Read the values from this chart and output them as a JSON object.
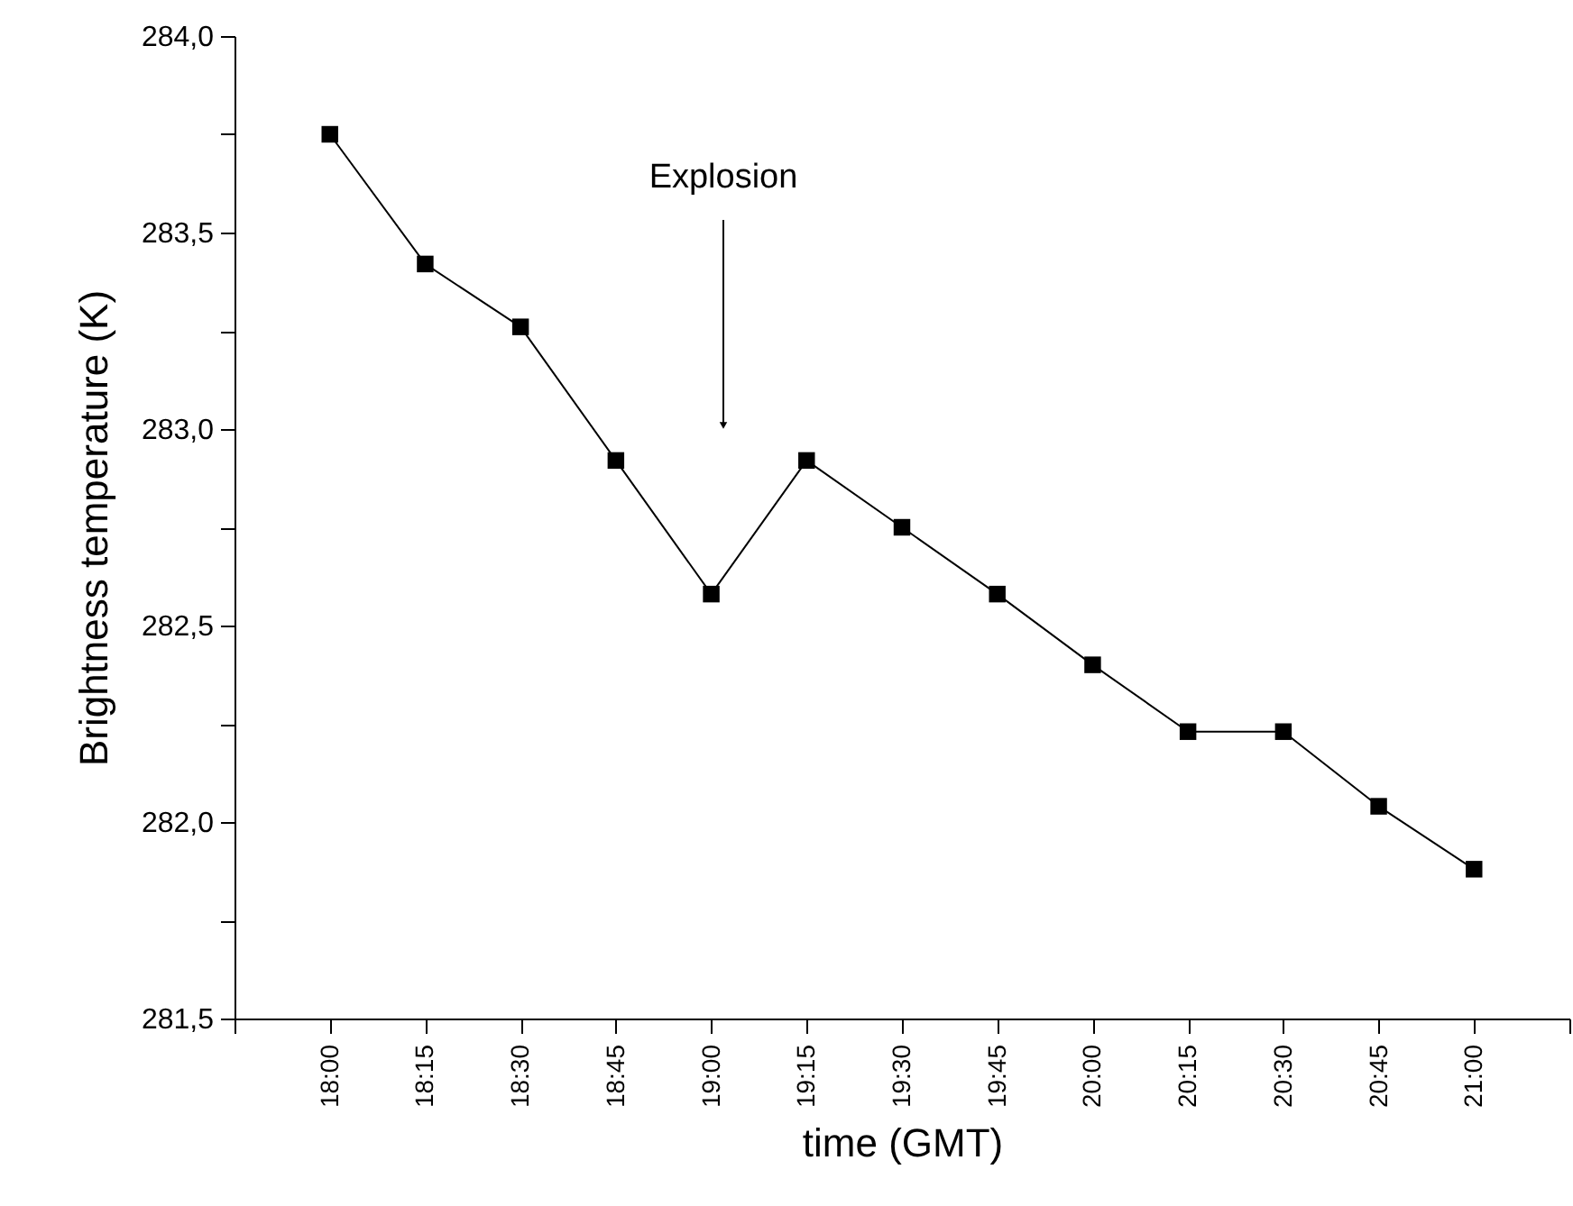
{
  "chart_data": {
    "type": "line",
    "xlabel": "time (GMT)",
    "ylabel": "Brightness temperature (K)",
    "x": [
      18,
      18.25,
      18.5,
      18.75,
      19,
      19.25,
      19.5,
      19.75,
      20,
      20.25,
      20.5,
      20.75,
      21
    ],
    "series": [
      {
        "color": "#000000",
        "values": [
          283.75,
          283.42,
          283.26,
          282.92,
          282.58,
          282.92,
          282.75,
          282.58,
          282.4,
          282.23,
          282.23,
          282.04,
          281.88
        ]
      }
    ],
    "xlim": [
      17.75,
      21.25
    ],
    "xticks": [
      {
        "value": 17.75,
        "label": null
      },
      {
        "value": 18,
        "label": "18:00"
      },
      {
        "value": 18.25,
        "label": "18:15"
      },
      {
        "value": 18.5,
        "label": "18:30"
      },
      {
        "value": 18.75,
        "label": "18:45"
      },
      {
        "value": 19,
        "label": "19:00"
      },
      {
        "value": 19.25,
        "label": "19:15"
      },
      {
        "value": 19.5,
        "label": "19:30"
      },
      {
        "value": 19.75,
        "label": "19:45"
      },
      {
        "value": 20,
        "label": "20:00"
      },
      {
        "value": 20.25,
        "label": "20:15"
      },
      {
        "value": 20.5,
        "label": "20:30"
      },
      {
        "value": 20.75,
        "label": "20:45"
      },
      {
        "value": 21,
        "label": "21:00"
      },
      {
        "value": 21.25,
        "label": null
      }
    ],
    "ylim": [
      281.5,
      284
    ],
    "yticks": [
      {
        "value": 281.5,
        "label": "281,5"
      },
      {
        "value": 281.75,
        "label": null
      },
      {
        "value": 282,
        "label": "282,0"
      },
      {
        "value": 282.25,
        "label": null
      },
      {
        "value": 282.5,
        "label": "282,5"
      },
      {
        "value": 282.75,
        "label": null
      },
      {
        "value": 283,
        "label": "283,0"
      },
      {
        "value": 283.25,
        "label": null
      },
      {
        "value": 283.5,
        "label": "283,5"
      },
      {
        "value": 283.75,
        "label": null
      },
      {
        "value": 284,
        "label": "284,0"
      }
    ],
    "annotations": [
      "Explosion"
    ],
    "marker": "square",
    "line_style": "solid",
    "grid": false
  }
}
